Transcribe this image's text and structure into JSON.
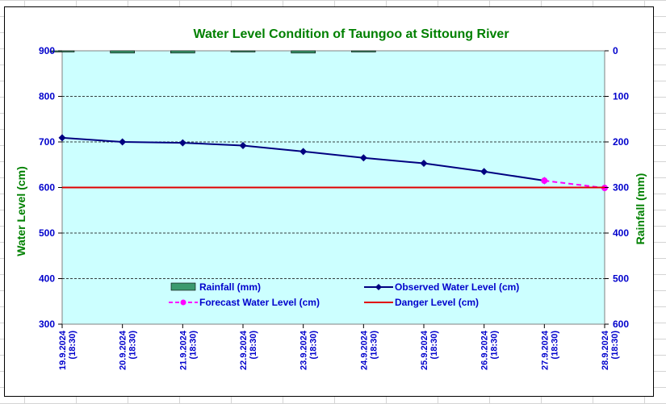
{
  "chart_data": {
    "type": "line",
    "title": "Water Level Condition of Taungoo at  Sittoung River",
    "ylabel": "Water Level (cm)",
    "y2label": "Rainfall (mm)",
    "ylim": [
      300,
      900
    ],
    "y_ticks": [
      300,
      400,
      500,
      600,
      700,
      800,
      900
    ],
    "y2lim": [
      0,
      600
    ],
    "y2_ticks": [
      0,
      100,
      200,
      300,
      400,
      500,
      600
    ],
    "y2_inverted": true,
    "categories": [
      [
        "19.9.2024",
        "(18:30)"
      ],
      [
        "20.9.2024",
        "(18:30)"
      ],
      [
        "21.9.2024",
        "(18:30)"
      ],
      [
        "22.9.2024",
        "(18:30)"
      ],
      [
        "23.9.2024",
        "(18:30)"
      ],
      [
        "24.9.2024",
        "(18:30)"
      ],
      [
        "25.9.2024",
        "(18:30)"
      ],
      [
        "26.9.2024",
        "(18:30)"
      ],
      [
        "27.9.2024",
        "(18:30)"
      ],
      [
        "28.9.2024",
        "(18:30)"
      ]
    ],
    "series": [
      {
        "name": "Rainfall (mm)",
        "kind": "bar",
        "axis": "right",
        "color": "#3c9a6e",
        "values": [
          0.5,
          5,
          5,
          0.5,
          5,
          0.5,
          null,
          null,
          null,
          null
        ]
      },
      {
        "name": "Observed Water Level (cm)",
        "kind": "line",
        "axis": "left",
        "color": "#000080",
        "marker": "diamond",
        "values": [
          709,
          700,
          698,
          692,
          679,
          665,
          653,
          635,
          615,
          null
        ]
      },
      {
        "name": "Forecast Water Level (cm)",
        "kind": "line",
        "axis": "left",
        "color": "#ff00ff",
        "dashed": true,
        "marker": "circle",
        "values": [
          null,
          null,
          null,
          null,
          null,
          null,
          null,
          null,
          615,
          599
        ]
      },
      {
        "name": "Danger Level (cm)",
        "kind": "line",
        "axis": "left",
        "color": "#e00000",
        "value": 600
      }
    ],
    "grid": true,
    "plot_background": "#ccffff",
    "legend_placement": "bottom-center"
  }
}
